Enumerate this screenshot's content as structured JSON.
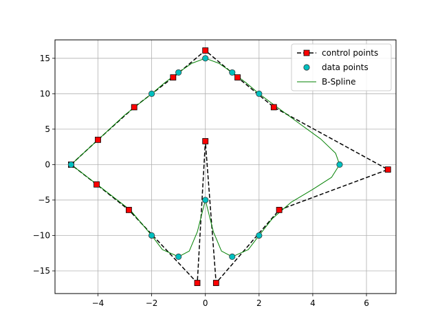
{
  "chart_data": {
    "type": "line",
    "title": "",
    "xlabel": "",
    "ylabel": "",
    "xlim": [
      -5.6,
      7.1
    ],
    "ylim": [
      -18.2,
      17.6
    ],
    "grid": true,
    "legend_position": "upper right",
    "x_ticks": [
      -4,
      -2,
      0,
      2,
      4,
      6
    ],
    "y_ticks": [
      -15,
      -10,
      -5,
      0,
      5,
      10,
      15
    ],
    "series": [
      {
        "name": "control points",
        "style": "dashed-line-square-markers",
        "line_color": "#000000",
        "marker_color": "#ff0000",
        "points": [
          [
            -5.0,
            0.0
          ],
          [
            -4.0,
            3.5
          ],
          [
            -2.65,
            8.1
          ],
          [
            -1.2,
            12.3
          ],
          [
            0.0,
            16.1
          ],
          [
            1.2,
            12.3
          ],
          [
            2.55,
            8.1
          ],
          [
            6.8,
            -0.7
          ],
          [
            2.75,
            -6.4
          ],
          [
            0.4,
            -16.7
          ],
          [
            0.0,
            3.3
          ],
          [
            -0.3,
            -16.7
          ],
          [
            -2.85,
            -6.4
          ],
          [
            -4.05,
            -2.8
          ],
          [
            -5.0,
            0.0
          ]
        ]
      },
      {
        "name": "data points",
        "style": "circle-markers",
        "marker_color": "#00bfbf",
        "points": [
          [
            -5,
            0
          ],
          [
            -2,
            10
          ],
          [
            -1,
            13
          ],
          [
            0,
            15
          ],
          [
            1,
            13
          ],
          [
            2,
            10
          ],
          [
            5,
            0
          ],
          [
            2,
            -10
          ],
          [
            1,
            -13
          ],
          [
            0,
            -5
          ],
          [
            -1,
            -13
          ],
          [
            -2,
            -10
          ],
          [
            -5,
            0
          ]
        ]
      },
      {
        "name": "B-Spline",
        "style": "solid-line",
        "line_color": "#008000",
        "points": [
          [
            -5,
            0
          ],
          [
            -4,
            3.5
          ],
          [
            -3,
            7
          ],
          [
            -2,
            10
          ],
          [
            -1.5,
            11.6
          ],
          [
            -1,
            13
          ],
          [
            -0.5,
            14.3
          ],
          [
            0,
            15
          ],
          [
            0.5,
            14.3
          ],
          [
            1,
            13
          ],
          [
            1.5,
            11.6
          ],
          [
            2,
            10
          ],
          [
            2.6,
            8.3
          ],
          [
            3.5,
            5.8
          ],
          [
            4.3,
            3.6
          ],
          [
            4.85,
            1.6
          ],
          [
            5,
            0
          ],
          [
            4.7,
            -1.8
          ],
          [
            4,
            -3.5
          ],
          [
            3.2,
            -5.3
          ],
          [
            2.5,
            -7.6
          ],
          [
            2,
            -10
          ],
          [
            1.6,
            -12
          ],
          [
            1,
            -13
          ],
          [
            0.6,
            -12.2
          ],
          [
            0.3,
            -9.5
          ],
          [
            0.1,
            -6.5
          ],
          [
            0,
            -5
          ],
          [
            -0.1,
            -6.5
          ],
          [
            -0.3,
            -9.5
          ],
          [
            -0.6,
            -12.2
          ],
          [
            -1,
            -13
          ],
          [
            -1.6,
            -12
          ],
          [
            -2,
            -10
          ],
          [
            -2.8,
            -6.4
          ],
          [
            -4,
            -2.9
          ],
          [
            -5,
            0
          ]
        ]
      }
    ]
  }
}
